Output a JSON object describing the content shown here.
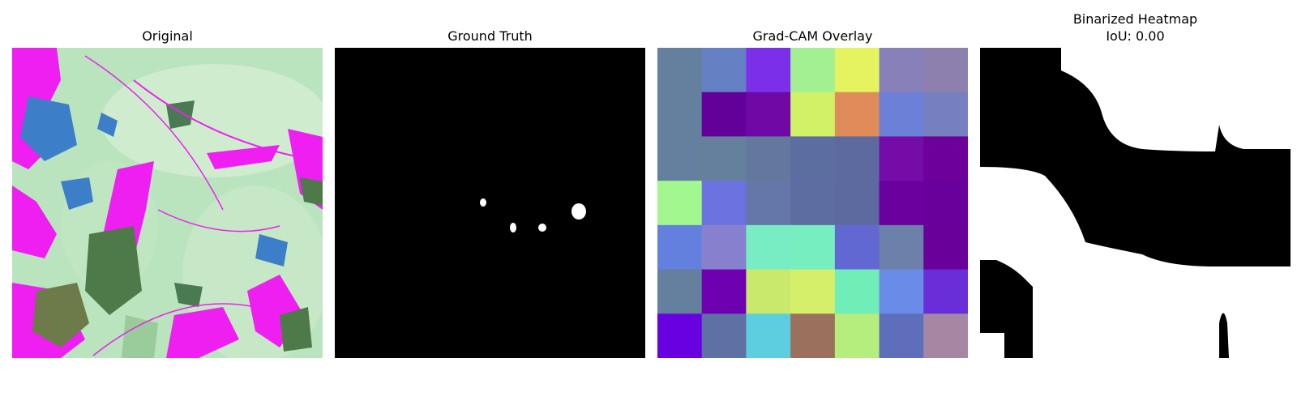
{
  "panels": {
    "original": {
      "title": "Original"
    },
    "ground_truth": {
      "title": "Ground Truth"
    },
    "gradcam": {
      "title": "Grad-CAM Overlay",
      "grid": [
        [
          "#64809e",
          "#6680c4",
          "#7c2fe8",
          "#a2f091",
          "#e6f361",
          "#8880b9",
          "#8d80ae"
        ],
        [
          "#64809e",
          "#64009a",
          "#7008a6",
          "#d1f166",
          "#df8b5a",
          "#6b80d6",
          "#7680c0"
        ],
        [
          "#64809e",
          "#64809c",
          "#62789d",
          "#5c6ea0",
          "#5c6aa0",
          "#760ca8",
          "#6c0099"
        ],
        [
          "#a2f88e",
          "#6d72e1",
          "#6577a8",
          "#5d6da2",
          "#5d6aa0",
          "#6a009e",
          "#6a009b"
        ],
        [
          "#6480df",
          "#8780ce",
          "#78ecc2",
          "#76eebf",
          "#6268d2",
          "#6c80a9",
          "#6a009a"
        ],
        [
          "#64809e",
          "#6d00b1",
          "#c8e96b",
          "#d6ef6b",
          "#70eeb8",
          "#6b8be8",
          "#6a2ed8"
        ],
        [
          "#6800e0",
          "#5e70a4",
          "#5ccee0",
          "#9b705c",
          "#b6ee7d",
          "#5f6eba",
          "#a687a3"
        ]
      ]
    },
    "binarized": {
      "title": "Binarized Heatmap\nIoU: 0.00"
    }
  }
}
